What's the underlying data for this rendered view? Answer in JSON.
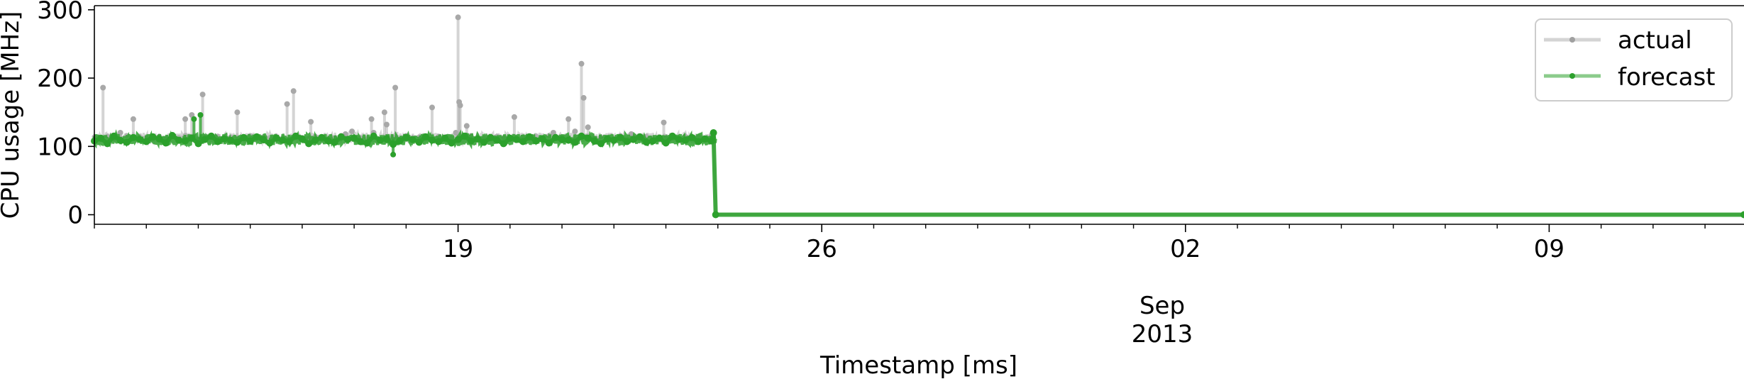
{
  "chart_data": {
    "type": "line",
    "ylabel": "CPU usage [MHz]",
    "xlabel": "Timestamp [ms]",
    "ylim": [
      -14,
      306
    ],
    "xlim": [
      "2013-08-12T00:00",
      "2013-09-12T18:00"
    ],
    "y_ticks": [
      0,
      100,
      200,
      300
    ],
    "x_major_ticks": [
      {
        "date": "2013-08-19",
        "label": "19"
      },
      {
        "date": "2013-08-26",
        "label": "26"
      },
      {
        "date": "2013-09-02",
        "label": "02"
      },
      {
        "date": "2013-09-09",
        "label": "09"
      }
    ],
    "x_minor_tick_dates": [
      "2013-08-12",
      "2013-08-13",
      "2013-08-14",
      "2013-08-15",
      "2013-08-16",
      "2013-08-17",
      "2013-08-18",
      "2013-08-20",
      "2013-08-21",
      "2013-08-22",
      "2013-08-23",
      "2013-08-24",
      "2013-08-25",
      "2013-08-27",
      "2013-08-28",
      "2013-08-29",
      "2013-08-30",
      "2013-08-31",
      "2013-09-01",
      "2013-09-03",
      "2013-09-04",
      "2013-09-05",
      "2013-09-06",
      "2013-09-07",
      "2013-09-08",
      "2013-09-10",
      "2013-09-11",
      "2013-09-12"
    ],
    "x_offset_label": {
      "month": "Sep",
      "year": "2013"
    },
    "grid": false,
    "legend_position": "top-right",
    "series": [
      {
        "name": "actual",
        "color": "#b0b0b0",
        "baseline_level": 113,
        "noise_band": [
          105,
          120
        ],
        "x": [
          "2013-08-12T00:00",
          "2013-08-12T03:00",
          "2013-08-12T06:00",
          "2013-08-12T09:00",
          "2013-08-12T12:00",
          "2013-08-12T15:00",
          "2013-08-12T18:00",
          "2013-08-12T21:00",
          "2013-08-13T00:00",
          "2013-08-13T03:00",
          "2013-08-13T06:00",
          "2013-08-13T09:00",
          "2013-08-13T12:00",
          "2013-08-13T15:00",
          "2013-08-13T18:00",
          "2013-08-13T21:00",
          "2013-08-14T00:00",
          "2013-08-14T03:00",
          "2013-08-14T06:00",
          "2013-08-14T09:00",
          "2013-08-14T12:00",
          "2013-08-14T15:00",
          "2013-08-14T18:00",
          "2013-08-14T21:00",
          "2013-08-15T00:00",
          "2013-08-15T03:00",
          "2013-08-15T06:00",
          "2013-08-15T09:00",
          "2013-08-15T12:00",
          "2013-08-15T15:00",
          "2013-08-15T18:00",
          "2013-08-15T21:00",
          "2013-08-16T00:00",
          "2013-08-16T03:00",
          "2013-08-16T06:00",
          "2013-08-16T09:00",
          "2013-08-16T12:00",
          "2013-08-16T15:00",
          "2013-08-16T18:00",
          "2013-08-16T21:00",
          "2013-08-17T00:00",
          "2013-08-17T03:00",
          "2013-08-17T06:00",
          "2013-08-17T09:00",
          "2013-08-17T12:00",
          "2013-08-17T15:00",
          "2013-08-17T18:00",
          "2013-08-17T21:00",
          "2013-08-18T00:00",
          "2013-08-18T03:00",
          "2013-08-18T06:00",
          "2013-08-18T09:00",
          "2013-08-18T12:00",
          "2013-08-18T15:00",
          "2013-08-18T18:00",
          "2013-08-18T21:00",
          "2013-08-19T00:00",
          "2013-08-19T03:00",
          "2013-08-19T06:00",
          "2013-08-19T09:00",
          "2013-08-19T12:00",
          "2013-08-19T15:00",
          "2013-08-19T18:00",
          "2013-08-19T21:00",
          "2013-08-20T00:00",
          "2013-08-20T03:00",
          "2013-08-20T06:00",
          "2013-08-20T09:00",
          "2013-08-20T12:00",
          "2013-08-20T15:00",
          "2013-08-20T18:00",
          "2013-08-20T21:00",
          "2013-08-21T00:00",
          "2013-08-21T03:00",
          "2013-08-21T06:00",
          "2013-08-21T09:00",
          "2013-08-21T12:00",
          "2013-08-21T15:00",
          "2013-08-21T18:00",
          "2013-08-21T21:00",
          "2013-08-22T00:00",
          "2013-08-22T03:00",
          "2013-08-22T06:00",
          "2013-08-22T09:00",
          "2013-08-22T12:00",
          "2013-08-22T15:00",
          "2013-08-22T18:00",
          "2013-08-22T21:00",
          "2013-08-23T00:00",
          "2013-08-23T03:00",
          "2013-08-23T06:00",
          "2013-08-23T09:00",
          "2013-08-23T12:00",
          "2013-08-23T15:00",
          "2013-08-23T18:00",
          "2013-08-23T21:00",
          "2013-08-23T22:00",
          "2013-08-23T23:00",
          "2013-09-12T18:00"
        ],
        "values": [
          114,
          112,
          115,
          111,
          113,
          116,
          112,
          114,
          113,
          111,
          115,
          112,
          114,
          113,
          116,
          112,
          111,
          114,
          113,
          115,
          112,
          114,
          113,
          111,
          116,
          112,
          114,
          113,
          115,
          112,
          111,
          114,
          113,
          112,
          115,
          114,
          111,
          113,
          116,
          112,
          114,
          113,
          112,
          115,
          111,
          114,
          113,
          112,
          116,
          113,
          114,
          112,
          111,
          115,
          113,
          112,
          114,
          113,
          116,
          111,
          112,
          114,
          115,
          113,
          112,
          111,
          114,
          113,
          115,
          112,
          116,
          113,
          114,
          112,
          111,
          113,
          115,
          112,
          114,
          113,
          112,
          116,
          111,
          114,
          113,
          115,
          112,
          113,
          114,
          112,
          111,
          115,
          113,
          114,
          112,
          116,
          113,
          1,
          1
        ],
        "spikes": [
          {
            "x": "2013-08-12T04:00",
            "y": 186
          },
          {
            "x": "2013-08-12T12:00",
            "y": 120
          },
          {
            "x": "2013-08-12T18:00",
            "y": 140
          },
          {
            "x": "2013-08-13T18:00",
            "y": 140
          },
          {
            "x": "2013-08-13T21:00",
            "y": 146
          },
          {
            "x": "2013-08-14T02:00",
            "y": 176
          },
          {
            "x": "2013-08-14T18:00",
            "y": 150
          },
          {
            "x": "2013-08-15T17:00",
            "y": 162
          },
          {
            "x": "2013-08-15T20:00",
            "y": 181
          },
          {
            "x": "2013-08-16T04:00",
            "y": 136
          },
          {
            "x": "2013-08-16T20:00",
            "y": 118
          },
          {
            "x": "2013-08-16T23:00",
            "y": 122
          },
          {
            "x": "2013-08-17T08:00",
            "y": 140
          },
          {
            "x": "2013-08-17T09:00",
            "y": 120
          },
          {
            "x": "2013-08-17T14:00",
            "y": 150
          },
          {
            "x": "2013-08-17T15:00",
            "y": 132
          },
          {
            "x": "2013-08-17T19:00",
            "y": 186
          },
          {
            "x": "2013-08-18T12:00",
            "y": 157
          },
          {
            "x": "2013-08-18T23:00",
            "y": 120
          },
          {
            "x": "2013-08-19T00:00",
            "y": 289
          },
          {
            "x": "2013-08-19T00:30",
            "y": 165
          },
          {
            "x": "2013-08-19T01:00",
            "y": 160
          },
          {
            "x": "2013-08-19T04:00",
            "y": 130
          },
          {
            "x": "2013-08-20T02:00",
            "y": 143
          },
          {
            "x": "2013-08-20T20:00",
            "y": 120
          },
          {
            "x": "2013-08-21T03:00",
            "y": 140
          },
          {
            "x": "2013-08-21T06:00",
            "y": 122
          },
          {
            "x": "2013-08-21T09:00",
            "y": 221
          },
          {
            "x": "2013-08-21T10:00",
            "y": 171
          },
          {
            "x": "2013-08-21T12:00",
            "y": 128
          },
          {
            "x": "2013-08-22T08:00",
            "y": 118
          },
          {
            "x": "2013-08-22T23:00",
            "y": 135
          }
        ]
      },
      {
        "name": "forecast",
        "color": "#2ca02c",
        "baseline_level": 110,
        "noise_band": [
          102,
          118
        ],
        "x": [
          "2013-08-12T00:00",
          "2013-08-12T03:00",
          "2013-08-12T06:00",
          "2013-08-12T09:00",
          "2013-08-12T12:00",
          "2013-08-12T15:00",
          "2013-08-12T18:00",
          "2013-08-12T21:00",
          "2013-08-13T00:00",
          "2013-08-13T03:00",
          "2013-08-13T06:00",
          "2013-08-13T09:00",
          "2013-08-13T12:00",
          "2013-08-13T15:00",
          "2013-08-13T18:00",
          "2013-08-13T21:00",
          "2013-08-14T00:00",
          "2013-08-14T03:00",
          "2013-08-14T06:00",
          "2013-08-14T09:00",
          "2013-08-14T12:00",
          "2013-08-14T15:00",
          "2013-08-14T18:00",
          "2013-08-14T21:00",
          "2013-08-15T00:00",
          "2013-08-15T03:00",
          "2013-08-15T06:00",
          "2013-08-15T09:00",
          "2013-08-15T12:00",
          "2013-08-15T15:00",
          "2013-08-15T18:00",
          "2013-08-15T21:00",
          "2013-08-16T00:00",
          "2013-08-16T03:00",
          "2013-08-16T06:00",
          "2013-08-16T09:00",
          "2013-08-16T12:00",
          "2013-08-16T15:00",
          "2013-08-16T18:00",
          "2013-08-16T21:00",
          "2013-08-17T00:00",
          "2013-08-17T03:00",
          "2013-08-17T06:00",
          "2013-08-17T09:00",
          "2013-08-17T12:00",
          "2013-08-17T15:00",
          "2013-08-17T18:00",
          "2013-08-17T21:00",
          "2013-08-18T00:00",
          "2013-08-18T03:00",
          "2013-08-18T06:00",
          "2013-08-18T09:00",
          "2013-08-18T12:00",
          "2013-08-18T15:00",
          "2013-08-18T18:00",
          "2013-08-18T21:00",
          "2013-08-19T00:00",
          "2013-08-19T03:00",
          "2013-08-19T06:00",
          "2013-08-19T09:00",
          "2013-08-19T12:00",
          "2013-08-19T15:00",
          "2013-08-19T18:00",
          "2013-08-19T21:00",
          "2013-08-20T00:00",
          "2013-08-20T03:00",
          "2013-08-20T06:00",
          "2013-08-20T09:00",
          "2013-08-20T12:00",
          "2013-08-20T15:00",
          "2013-08-20T18:00",
          "2013-08-20T21:00",
          "2013-08-21T00:00",
          "2013-08-21T03:00",
          "2013-08-21T06:00",
          "2013-08-21T09:00",
          "2013-08-21T12:00",
          "2013-08-21T15:00",
          "2013-08-21T18:00",
          "2013-08-21T21:00",
          "2013-08-22T00:00",
          "2013-08-22T03:00",
          "2013-08-22T06:00",
          "2013-08-22T09:00",
          "2013-08-22T12:00",
          "2013-08-22T15:00",
          "2013-08-22T18:00",
          "2013-08-22T21:00",
          "2013-08-23T00:00",
          "2013-08-23T03:00",
          "2013-08-23T06:00",
          "2013-08-23T09:00",
          "2013-08-23T12:00",
          "2013-08-23T15:00",
          "2013-08-23T18:00",
          "2013-08-23T21:00",
          "2013-08-23T22:00",
          "2013-08-23T23:00",
          "2013-09-12T18:00"
        ],
        "values": [
          108,
          112,
          104,
          115,
          109,
          106,
          113,
          110,
          107,
          114,
          111,
          105,
          116,
          109,
          108,
          112,
          104,
          110,
          115,
          107,
          111,
          109,
          106,
          113,
          108,
          114,
          110,
          105,
          112,
          109,
          107,
          115,
          111,
          104,
          109,
          113,
          108,
          106,
          114,
          110,
          112,
          107,
          105,
          115,
          109,
          111,
          103,
          108,
          113,
          110,
          106,
          114,
          109,
          107,
          112,
          105,
          110,
          115,
          108,
          111,
          106,
          113,
          109,
          104,
          112,
          110,
          107,
          114,
          108,
          111,
          105,
          113,
          110,
          109,
          106,
          115,
          112,
          108,
          104,
          111,
          109,
          113,
          107,
          110,
          114,
          106,
          108,
          112,
          105,
          115,
          110,
          109,
          113,
          107,
          111,
          108,
          120,
          0,
          0
        ],
        "spikes": [
          {
            "x": "2013-08-13T22:00",
            "y": 140
          },
          {
            "x": "2013-08-14T01:00",
            "y": 146
          },
          {
            "x": "2013-08-17T18:00",
            "y": 88
          }
        ]
      }
    ]
  }
}
